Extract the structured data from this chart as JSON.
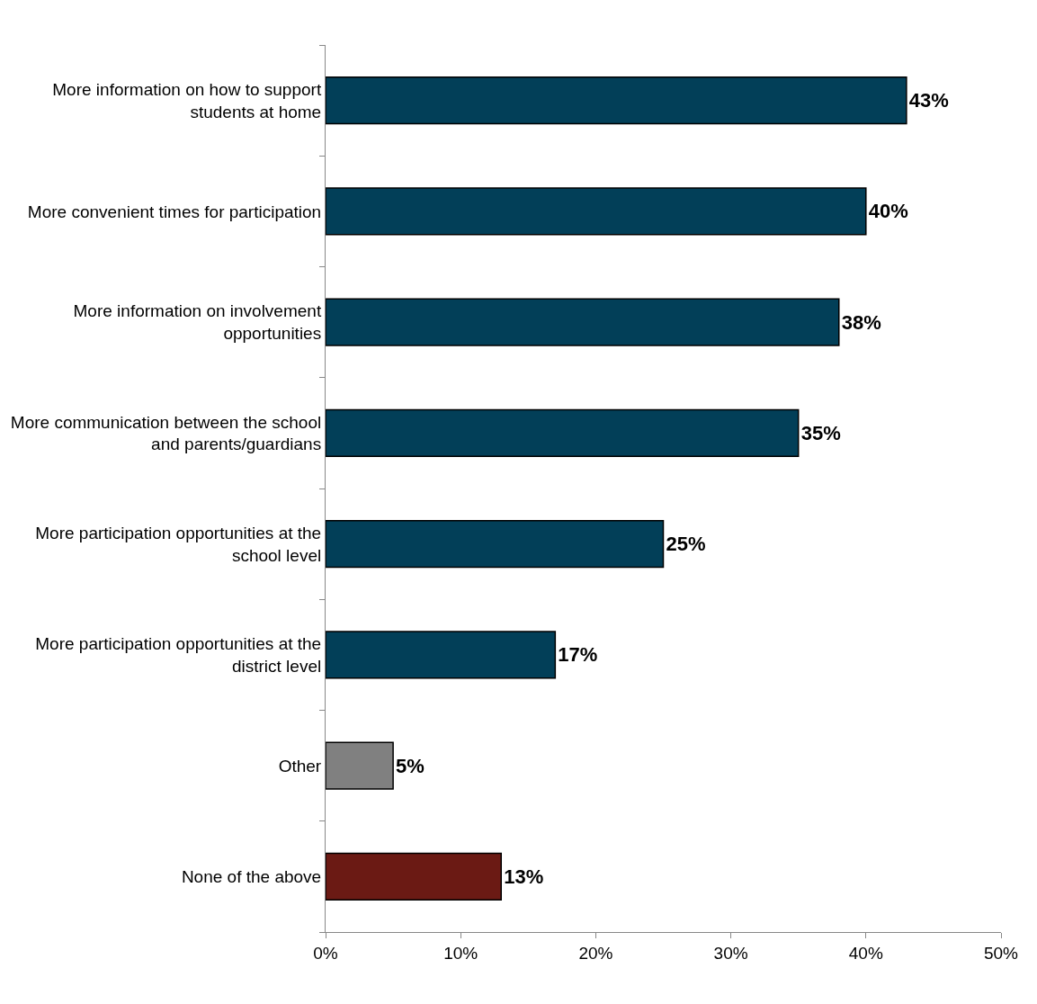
{
  "chart_data": {
    "type": "bar",
    "orientation": "horizontal",
    "categories": [
      "More information on how to support students at home",
      "More convenient times for participation",
      "More information on involvement opportunities",
      "More communication between the school and parents/guardians",
      "More participation opportunities at the school level",
      "More participation opportunities at the district level",
      "Other",
      "None of the above"
    ],
    "values": [
      43,
      40,
      38,
      35,
      25,
      17,
      5,
      13
    ],
    "colors": [
      "#023f58",
      "#023f58",
      "#023f58",
      "#023f58",
      "#023f58",
      "#023f58",
      "#808080",
      "#6b1a14"
    ],
    "value_labels": [
      "43%",
      "40%",
      "38%",
      "35%",
      "25%",
      "17%",
      "5%",
      "13%"
    ],
    "xlim": [
      0,
      50
    ],
    "xticks": [
      {
        "value": 0,
        "label": "0%"
      },
      {
        "value": 10,
        "label": "10%"
      },
      {
        "value": 20,
        "label": "20%"
      },
      {
        "value": 30,
        "label": "30%"
      },
      {
        "value": 40,
        "label": "40%"
      },
      {
        "value": 50,
        "label": "50%"
      }
    ],
    "legend": false
  }
}
